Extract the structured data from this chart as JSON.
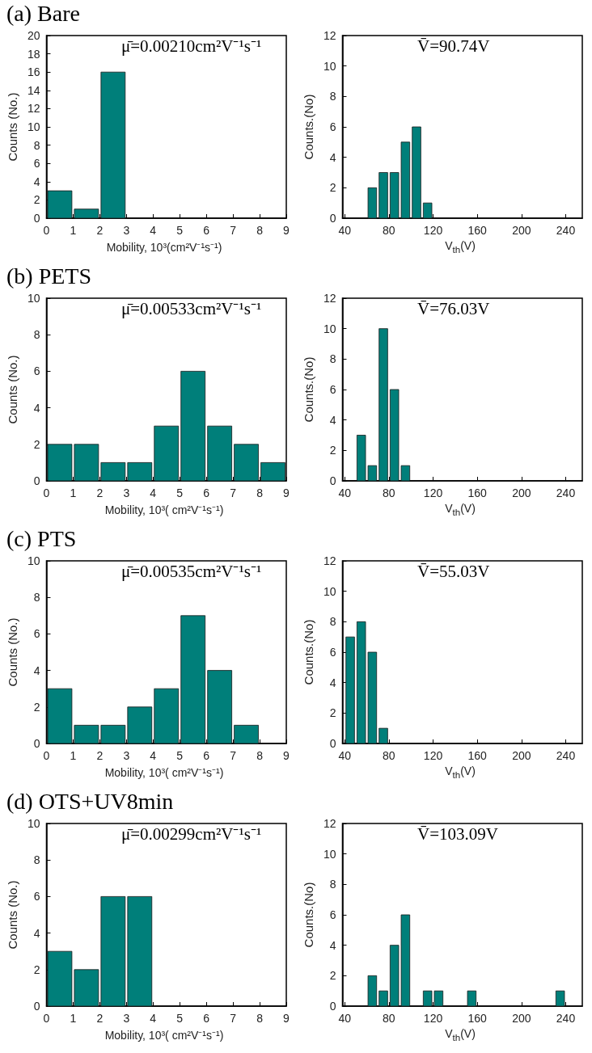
{
  "chart_data": [
    {
      "type": "histogram",
      "title": "(a) Bare",
      "annotations": [
        "μ̄=0.00210cm²V⁻¹s⁻¹"
      ],
      "xlabel": "Mobility, 10³(cm²V⁻¹s⁻¹)",
      "ylabel": "Counts (No.)",
      "color": "#007f7a",
      "bins": [
        0,
        1,
        2,
        3
      ],
      "values": [
        3,
        1,
        16
      ],
      "xlim": [
        0,
        9
      ],
      "xticks": [
        0,
        1,
        2,
        3,
        4,
        5,
        6,
        7,
        8,
        9
      ],
      "ylim": [
        0,
        20
      ],
      "yticks": [
        0,
        2,
        4,
        6,
        8,
        10,
        12,
        14,
        16,
        18,
        20
      ]
    },
    {
      "type": "histogram",
      "annotations": [
        "V̄=90.74V"
      ],
      "xlabel": "V$_{th}$(V)",
      "ylabel": "Counts.(No)",
      "color": "#007f7a",
      "bins": [
        60,
        70,
        80,
        90,
        100,
        110,
        120
      ],
      "values": [
        2,
        3,
        3,
        5,
        6,
        1
      ],
      "xlim": [
        38,
        255
      ],
      "xticks": [
        40,
        80,
        120,
        160,
        200,
        240
      ],
      "ylim": [
        0,
        12
      ],
      "yticks": [
        0,
        2,
        4,
        6,
        8,
        10,
        12
      ]
    },
    {
      "type": "histogram",
      "title": "(b) PETS",
      "annotations": [
        "μ̄=0.00533cm²V⁻¹s⁻¹"
      ],
      "xlabel": "Mobility, 10³( cm²V⁻¹s⁻¹)",
      "ylabel": "Counts (No.)",
      "color": "#007f7a",
      "bins": [
        0,
        1,
        2,
        3,
        4,
        5,
        6,
        7,
        8,
        9
      ],
      "values": [
        2,
        2,
        1,
        1,
        3,
        6,
        3,
        2,
        1
      ],
      "xlim": [
        0,
        9
      ],
      "xticks": [
        0,
        1,
        2,
        3,
        4,
        5,
        6,
        7,
        8,
        9
      ],
      "ylim": [
        0,
        10
      ],
      "yticks": [
        0,
        2,
        4,
        6,
        8,
        10
      ]
    },
    {
      "type": "histogram",
      "annotations": [
        "V̄=76.03V"
      ],
      "xlabel": "V$_{th}$(V)",
      "ylabel": "Counts.(No)",
      "color": "#007f7a",
      "bins": [
        50,
        60,
        70,
        80,
        90,
        100
      ],
      "values": [
        3,
        1,
        10,
        6,
        1
      ],
      "xlim": [
        38,
        255
      ],
      "xticks": [
        40,
        80,
        120,
        160,
        200,
        240
      ],
      "ylim": [
        0,
        12
      ],
      "yticks": [
        0,
        2,
        4,
        6,
        8,
        10,
        12
      ]
    },
    {
      "type": "histogram",
      "title": "(c) PTS",
      "annotations": [
        "μ̄=0.00535cm²V⁻¹s⁻¹"
      ],
      "xlabel": "Mobility, 10³( cm²V⁻¹s⁻¹)",
      "ylabel": "Counts (No.)",
      "color": "#007f7a",
      "bins": [
        0,
        1,
        2,
        3,
        4,
        5,
        6,
        7,
        8
      ],
      "values": [
        3,
        1,
        1,
        2,
        3,
        7,
        4,
        1
      ],
      "xlim": [
        0,
        9
      ],
      "xticks": [
        0,
        1,
        2,
        3,
        4,
        5,
        6,
        7,
        8,
        9
      ],
      "ylim": [
        0,
        10
      ],
      "yticks": [
        0,
        2,
        4,
        6,
        8,
        10
      ]
    },
    {
      "type": "histogram",
      "annotations": [
        "V̄=55.03V"
      ],
      "xlabel": "V$_{th}$(V)",
      "ylabel": "Counts.(No)",
      "color": "#007f7a",
      "bins": [
        40,
        50,
        60,
        70,
        80
      ],
      "values": [
        7,
        8,
        6,
        1
      ],
      "xlim": [
        38,
        255
      ],
      "xticks": [
        40,
        80,
        120,
        160,
        200,
        240
      ],
      "ylim": [
        0,
        12
      ],
      "yticks": [
        0,
        2,
        4,
        6,
        8,
        10,
        12
      ]
    },
    {
      "type": "histogram",
      "title": "(d) OTS+UV8min",
      "annotations": [
        "μ̄=0.00299cm²V⁻¹s⁻¹"
      ],
      "xlabel": "Mobility, 10³( cm²V⁻¹s⁻¹)",
      "ylabel": "Counts (No.)",
      "color": "#007f7a",
      "bins": [
        0,
        1,
        2,
        3,
        4
      ],
      "values": [
        3,
        2,
        6,
        6
      ],
      "xlim": [
        0,
        9
      ],
      "xticks": [
        0,
        1,
        2,
        3,
        4,
        5,
        6,
        7,
        8,
        9
      ],
      "ylim": [
        0,
        10
      ],
      "yticks": [
        0,
        2,
        4,
        6,
        8,
        10
      ]
    },
    {
      "type": "histogram",
      "annotations": [
        "V̄=103.09V"
      ],
      "xlabel": "V$_{th}$(V)",
      "ylabel": "Counts.(No)",
      "color": "#007f7a",
      "bins": [
        60,
        70,
        80,
        90,
        100,
        110,
        120,
        130,
        140,
        150,
        160,
        170,
        180,
        190,
        200,
        210,
        220,
        230,
        240
      ],
      "values": [
        2,
        1,
        4,
        6,
        0,
        1,
        1,
        0,
        0,
        1,
        0,
        0,
        0,
        0,
        0,
        0,
        0,
        1
      ],
      "xlim": [
        38,
        255
      ],
      "xticks": [
        40,
        80,
        120,
        160,
        200,
        240
      ],
      "ylim": [
        0,
        12
      ],
      "yticks": [
        0,
        2,
        4,
        6,
        8,
        10,
        12
      ]
    }
  ]
}
